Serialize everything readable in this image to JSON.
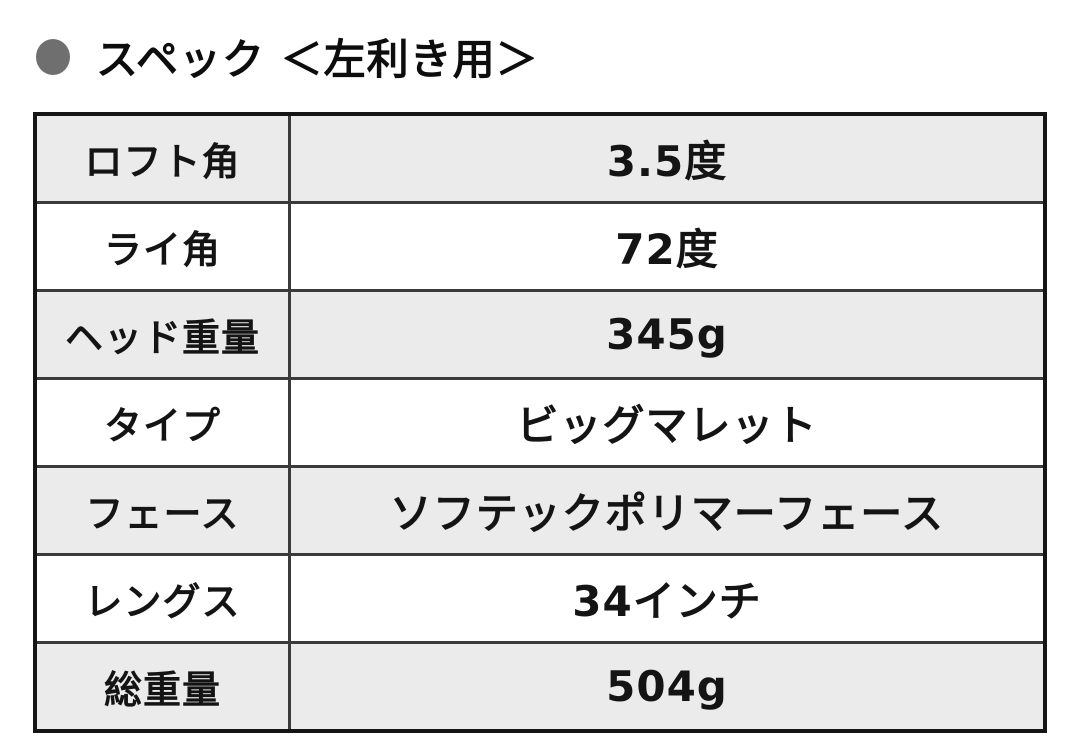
{
  "header": {
    "title": "スペック ＜左利き用＞",
    "bullet_color": "#6f6f6f"
  },
  "spec_table": {
    "stripe_color": "#ebebeb",
    "outer_border_color": "#151515",
    "inner_border_color": "#3a3a3a",
    "rows": [
      {
        "label": "ロフト角",
        "value": "3.5度"
      },
      {
        "label": "ライ角",
        "value": "72度"
      },
      {
        "label": "ヘッド重量",
        "value": "345g"
      },
      {
        "label": "タイプ",
        "value": "ビッグマレット"
      },
      {
        "label": "フェース",
        "value": "ソフテックポリマーフェース"
      },
      {
        "label": "レングス",
        "value": "34インチ"
      },
      {
        "label": "総重量",
        "value": "504g"
      }
    ]
  }
}
